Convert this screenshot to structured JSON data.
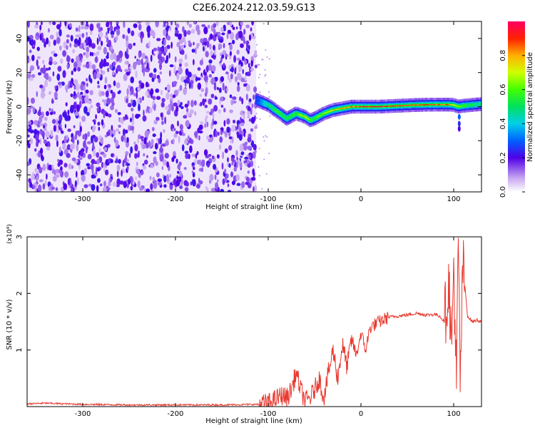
{
  "title": "C2E6.2024.212.03.59.G13",
  "chart_data": [
    {
      "type": "heatmap",
      "xlabel": "Height of straight line (km)",
      "ylabel": "Frequency (Hz)",
      "xlim": [
        -360,
        130
      ],
      "ylim": [
        -50,
        50
      ],
      "xticks": [
        -300,
        -200,
        -100,
        0,
        100
      ],
      "yticks": [
        -40,
        -20,
        0,
        20,
        40
      ],
      "colorbar": {
        "label": "Normalized spectral amplitude",
        "range": [
          0,
          1
        ],
        "ticks": [
          0.0,
          0.2,
          0.4,
          0.6,
          0.8
        ],
        "colormap": "rainbow"
      },
      "noise_region_x": [
        -360,
        -113
      ],
      "signal_track": {
        "x": [
          -113,
          -100,
          -90,
          -80,
          -70,
          -60,
          -55,
          -50,
          -40,
          -30,
          -20,
          -10,
          0,
          20,
          40,
          60,
          80,
          95,
          100,
          105,
          110,
          120,
          130
        ],
        "freq": [
          4,
          1,
          -3,
          -7,
          -4,
          -6,
          -8,
          -7,
          -4,
          -2,
          -1,
          0,
          0,
          0,
          0.5,
          1,
          1.2,
          1.2,
          1,
          0,
          0.5,
          1,
          1.5
        ],
        "amplitude": [
          0.25,
          0.45,
          0.55,
          0.5,
          0.55,
          0.75,
          0.6,
          0.55,
          0.65,
          0.75,
          0.8,
          0.85,
          0.9,
          0.95,
          0.9,
          0.85,
          0.9,
          0.85,
          0.7,
          0.6,
          0.55,
          0.5,
          0.45
        ]
      },
      "grid": false
    },
    {
      "type": "line",
      "xlabel": "Height of straight line (km)",
      "ylabel": "SNR (10 * v/v)",
      "y_multiplier": "(x10⁴)",
      "xlim": [
        -360,
        130
      ],
      "ylim": [
        0,
        3
      ],
      "xticks": [
        -300,
        -200,
        -100,
        0,
        100
      ],
      "yticks": [
        1,
        2,
        3
      ],
      "color": "#e83a30",
      "series": [
        {
          "x": [
            -360,
            -340,
            -300,
            -250,
            -200,
            -150,
            -110,
            -100,
            -95,
            -90,
            -85,
            -80,
            -75,
            -70,
            -65,
            -60,
            -55,
            -50,
            -45,
            -40,
            -35,
            -30,
            -25,
            -20,
            -15,
            -10,
            -5,
            0,
            5,
            10,
            20,
            30,
            40,
            50,
            60,
            70,
            80,
            85,
            90,
            95,
            98,
            100,
            103,
            105,
            107,
            110,
            115,
            120,
            125,
            130
          ],
          "y": [
            0.05,
            0.06,
            0.04,
            0.03,
            0.03,
            0.03,
            0.04,
            0.06,
            0.1,
            0.15,
            0.2,
            0.15,
            0.3,
            0.6,
            0.3,
            0.1,
            0.15,
            0.3,
            0.5,
            0.15,
            0.6,
            1.0,
            0.5,
            1.1,
            0.7,
            1.2,
            0.9,
            1.3,
            1.0,
            1.4,
            1.5,
            1.58,
            1.6,
            1.62,
            1.65,
            1.62,
            1.63,
            1.6,
            1.5,
            2.2,
            0.9,
            2.6,
            0.3,
            3.0,
            0.5,
            2.5,
            1.6,
            1.5,
            1.53,
            1.5
          ]
        }
      ]
    }
  ]
}
